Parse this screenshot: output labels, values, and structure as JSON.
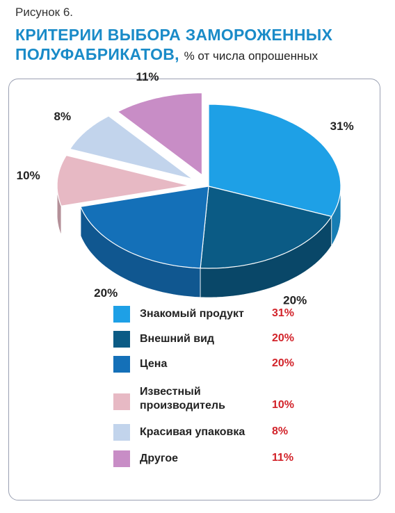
{
  "figure_label": "Рисунок 6.",
  "title_main": "КРИТЕРИИ ВЫБОРА ЗАМОРОЖЕННЫХ",
  "title_second": "ПОЛУФАБРИКАТОВ,",
  "title_unit": "% от числа опрошенных",
  "chart_data": {
    "type": "pie",
    "three_d": true,
    "labels": [
      "Знакомый продукт",
      "Внешний вид",
      "Цена",
      "Известный производитель",
      "Красивая упаковка",
      "Другое"
    ],
    "values": [
      31,
      20,
      20,
      10,
      8,
      11
    ],
    "value_labels": [
      "31%",
      "20%",
      "20%",
      "10%",
      "8%",
      "11%"
    ],
    "colors": [
      "#1ea0e6",
      "#0b5b85",
      "#1470b8",
      "#e7b9c4",
      "#c2d4ec",
      "#c88dc6"
    ],
    "exploded": [
      "Известный производитель",
      "Красивая упаковка",
      "Другое"
    ],
    "legend_position": "bottom"
  },
  "legend": [
    {
      "name": "Знакомый продукт",
      "value": "31%",
      "color": "#1ea0e6"
    },
    {
      "name": "Внешний вид",
      "value": "20%",
      "color": "#0b5b85"
    },
    {
      "name": "Цена",
      "value": "20%",
      "color": "#1470b8"
    },
    {
      "name": "Известный\nпроизводитель",
      "value": "10%",
      "color": "#e7b9c4"
    },
    {
      "name": "Красивая упаковка",
      "value": "8%",
      "color": "#c2d4ec"
    },
    {
      "name": "Другое",
      "value": "11%",
      "color": "#c88dc6"
    }
  ]
}
